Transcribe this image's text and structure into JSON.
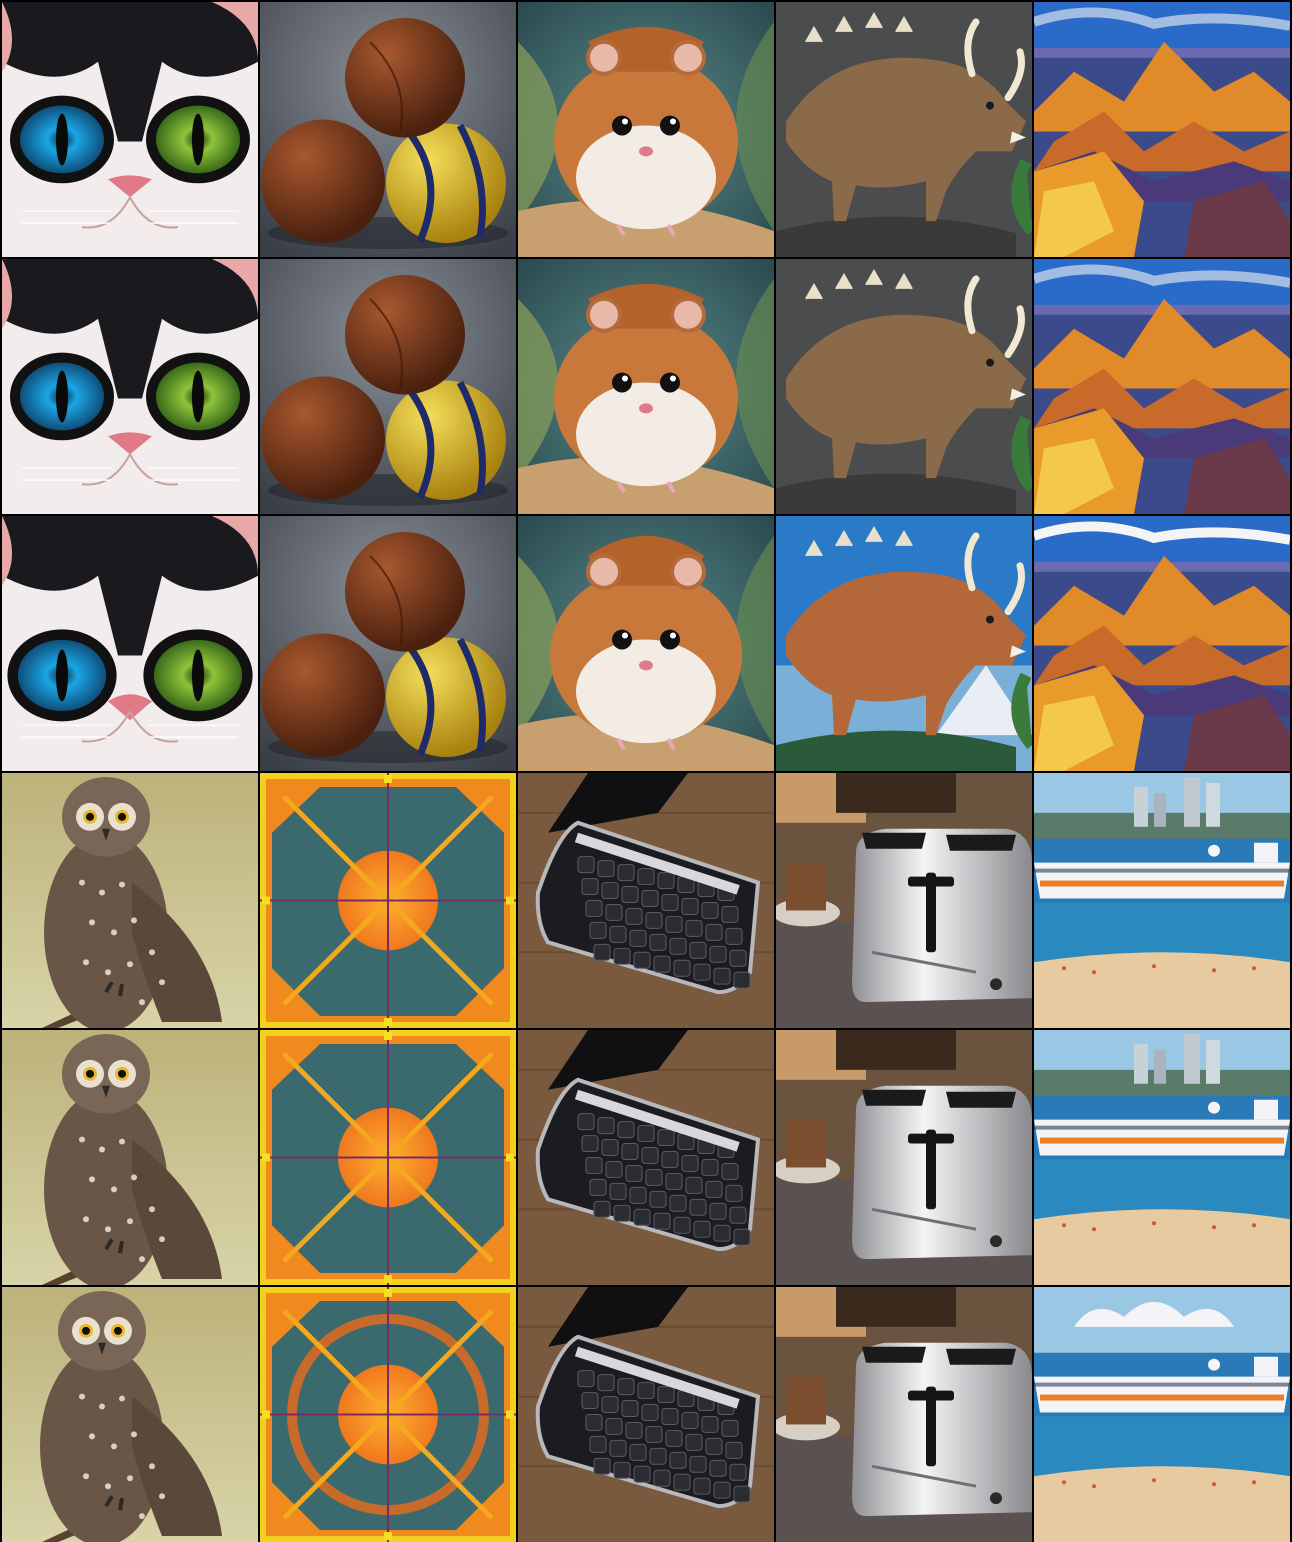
{
  "grid": {
    "rows": 6,
    "columns": 5,
    "background": "#000000",
    "sections": [
      {
        "subjects": [
          "cat-with-goggles",
          "stacked-balls",
          "hamster",
          "horned-dinosaur",
          "canyon-landscape"
        ],
        "variants": [
          "row-1",
          "row-2",
          "row-3"
        ]
      },
      {
        "subjects": [
          "owl-on-branch",
          "orange-geometric-pattern",
          "laptop-keyboard",
          "toaster",
          "cruise-ship-beach"
        ],
        "variants": [
          "row-4",
          "row-5",
          "row-6"
        ]
      }
    ]
  },
  "colors": {
    "cat_fur_white": "#f2ecec",
    "cat_fur_black": "#1a1a1e",
    "cat_eye_blue": "#1aa6e6",
    "cat_eye_green": "#8ec43a",
    "ball_brown": "#7a3a1e",
    "ball_yellow": "#e8c82a",
    "hamster_orange": "#c8783a",
    "dino_brown": "#8a6a48",
    "canyon_orange": "#e08a2a",
    "canyon_blue": "#3a4a8a",
    "owl_brown": "#6a5646",
    "pattern_orange": "#f0781e",
    "pattern_teal": "#3a6a6e",
    "laptop_black": "#1c1c20",
    "wood_brown": "#7a5a3e",
    "toaster_silver": "#c8c8cc",
    "sea_blue": "#2a7ab8",
    "sand": "#e8caa0"
  }
}
